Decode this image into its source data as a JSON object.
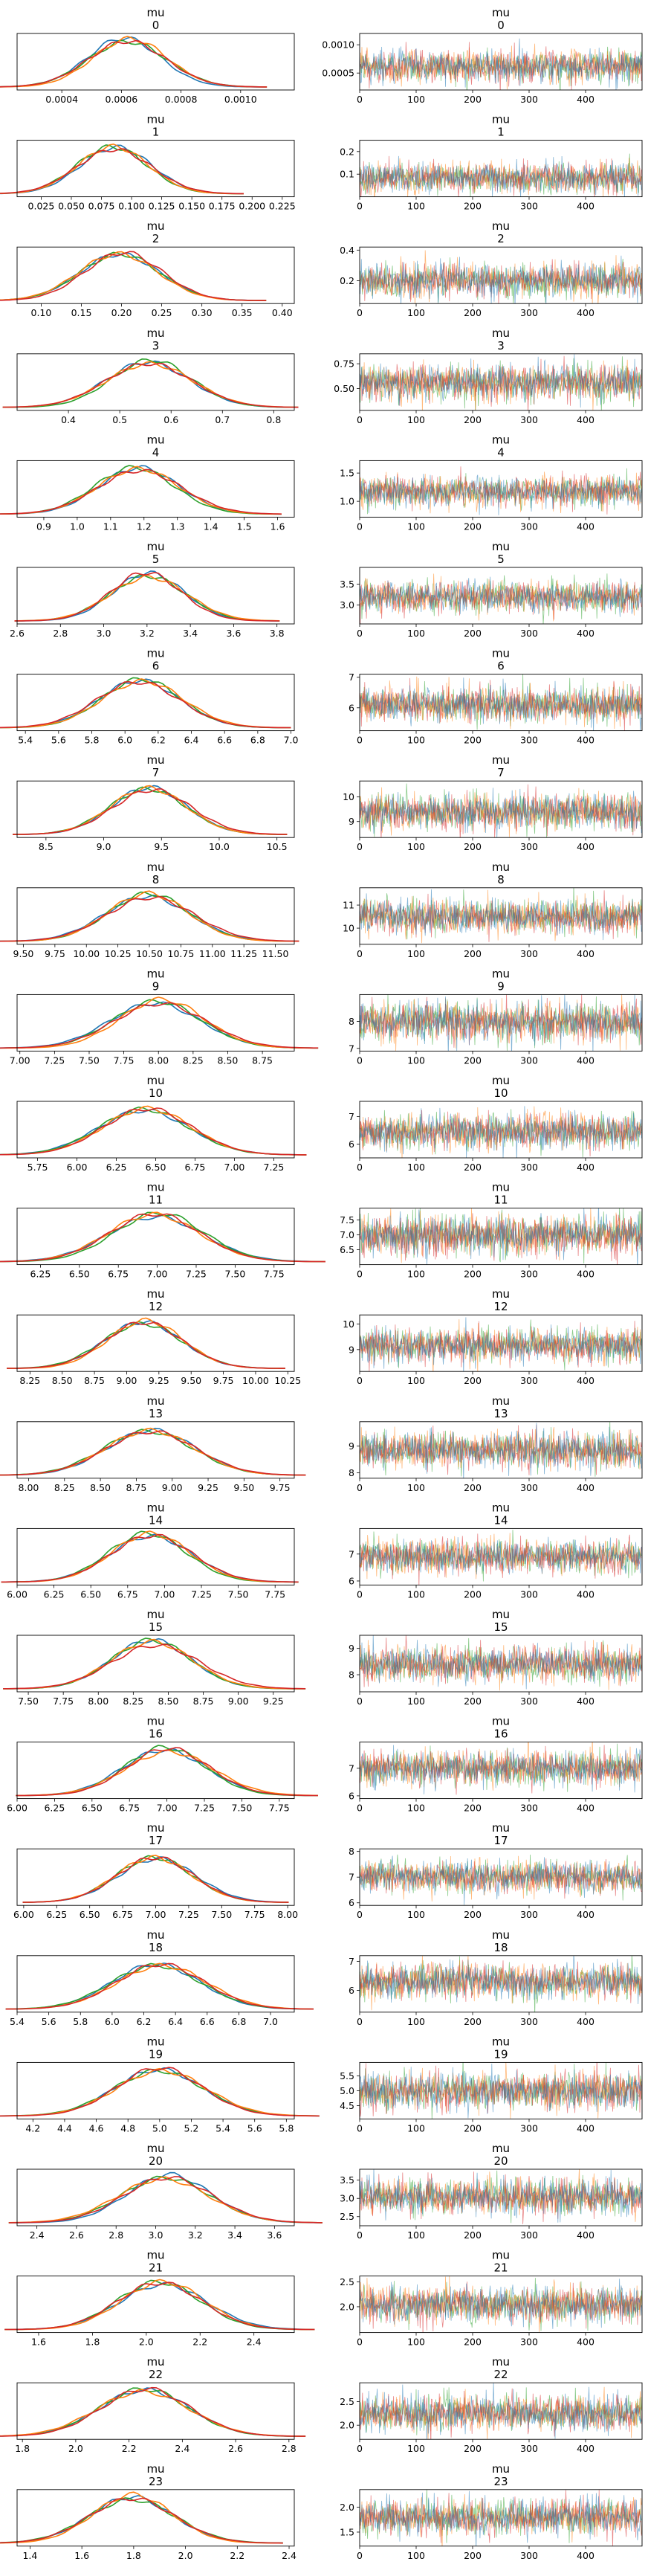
{
  "chart_data": {
    "type": "line",
    "title": "mu",
    "chains_colors": [
      "#1f77b4",
      "#ff7f0e",
      "#2ca02c",
      "#d62728"
    ],
    "trace_xlim": [
      0,
      500
    ],
    "trace_xticks": [
      "0",
      "100",
      "200",
      "300",
      "400"
    ],
    "panels": [
      {
        "index": "0",
        "mean": 0.00062,
        "sd": 0.00013,
        "kde_ticks": [
          "0.0004",
          "0.0006",
          "0.0008",
          "0.0010"
        ],
        "kde_xlim": [
          0.00025,
          0.00118
        ],
        "trace_ticks": [
          "0.0005",
          "0.0010"
        ],
        "trace_ylim": [
          0.0002,
          0.0012
        ]
      },
      {
        "index": "1",
        "mean": 0.085,
        "sd": 0.03,
        "kde_ticks": [
          "0.025",
          "0.050",
          "0.075",
          "0.100",
          "0.125",
          "0.150",
          "0.175",
          "0.200",
          "0.225"
        ],
        "kde_xlim": [
          0.005,
          0.235
        ],
        "trace_ticks": [
          "0.1",
          "0.2"
        ],
        "trace_ylim": [
          0.0,
          0.25
        ]
      },
      {
        "index": "2",
        "mean": 0.2,
        "sd": 0.05,
        "kde_ticks": [
          "0.10",
          "0.15",
          "0.20",
          "0.25",
          "0.30",
          "0.35",
          "0.40"
        ],
        "kde_xlim": [
          0.07,
          0.415
        ],
        "trace_ticks": [
          "0.2",
          "0.4"
        ],
        "trace_ylim": [
          0.05,
          0.42
        ]
      },
      {
        "index": "3",
        "mean": 0.56,
        "sd": 0.08,
        "kde_ticks": [
          "0.4",
          "0.5",
          "0.6",
          "0.7",
          "0.8"
        ],
        "kde_xlim": [
          0.3,
          0.84
        ],
        "trace_ticks": [
          "0.50",
          "0.75"
        ],
        "trace_ylim": [
          0.28,
          0.85
        ]
      },
      {
        "index": "4",
        "mean": 1.18,
        "sd": 0.12,
        "kde_ticks": [
          "0.9",
          "1.0",
          "1.1",
          "1.2",
          "1.3",
          "1.4",
          "1.5",
          "1.6"
        ],
        "kde_xlim": [
          0.82,
          1.65
        ],
        "trace_ticks": [
          "1.0",
          "1.5"
        ],
        "trace_ylim": [
          0.72,
          1.72
        ]
      },
      {
        "index": "5",
        "mean": 3.2,
        "sd": 0.17,
        "kde_ticks": [
          "2.6",
          "2.8",
          "3.0",
          "3.2",
          "3.4",
          "3.6",
          "3.8"
        ],
        "kde_xlim": [
          2.6,
          3.88
        ],
        "trace_ticks": [
          "3.0",
          "3.5"
        ],
        "trace_ylim": [
          2.55,
          3.9
        ]
      },
      {
        "index": "6",
        "mean": 6.1,
        "sd": 0.25,
        "kde_ticks": [
          "5.4",
          "5.6",
          "5.8",
          "6.0",
          "6.2",
          "6.4",
          "6.6",
          "6.8",
          "7.0"
        ],
        "kde_xlim": [
          5.35,
          7.02
        ],
        "trace_ticks": [
          "6",
          "7"
        ],
        "trace_ylim": [
          5.25,
          7.1
        ]
      },
      {
        "index": "7",
        "mean": 9.4,
        "sd": 0.33,
        "kde_ticks": [
          "8.5",
          "9.0",
          "9.5",
          "10.0",
          "10.5"
        ],
        "kde_xlim": [
          8.25,
          10.65
        ],
        "trace_ticks": [
          "9",
          "10"
        ],
        "trace_ylim": [
          8.35,
          10.65
        ]
      },
      {
        "index": "8",
        "mean": 10.5,
        "sd": 0.33,
        "kde_ticks": [
          "9.50",
          "9.75",
          "10.00",
          "10.25",
          "10.50",
          "10.75",
          "11.00",
          "11.25",
          "11.50"
        ],
        "kde_xlim": [
          9.45,
          11.65
        ],
        "trace_ticks": [
          "10",
          "11"
        ],
        "trace_ylim": [
          9.3,
          11.75
        ]
      },
      {
        "index": "9",
        "mean": 8.0,
        "sd": 0.32,
        "kde_ticks": [
          "7.00",
          "7.25",
          "7.50",
          "7.75",
          "8.00",
          "8.25",
          "8.50",
          "8.75"
        ],
        "kde_xlim": [
          6.98,
          8.98
        ],
        "trace_ticks": [
          "7",
          "8"
        ],
        "trace_ylim": [
          6.9,
          9.0
        ]
      },
      {
        "index": "10",
        "mean": 6.45,
        "sd": 0.28,
        "kde_ticks": [
          "5.75",
          "6.00",
          "6.25",
          "6.50",
          "6.75",
          "7.00",
          "7.25"
        ],
        "kde_xlim": [
          5.62,
          7.38
        ],
        "trace_ticks": [
          "6",
          "7"
        ],
        "trace_ylim": [
          5.5,
          7.55
        ]
      },
      {
        "index": "11",
        "mean": 7.0,
        "sd": 0.3,
        "kde_ticks": [
          "6.25",
          "6.50",
          "6.75",
          "7.00",
          "7.25",
          "7.50",
          "7.75"
        ],
        "kde_xlim": [
          6.1,
          7.88
        ],
        "trace_ticks": [
          "6.5",
          "7.0",
          "7.5"
        ],
        "trace_ylim": [
          6.0,
          7.9
        ]
      },
      {
        "index": "12",
        "mean": 9.15,
        "sd": 0.3,
        "kde_ticks": [
          "8.25",
          "8.50",
          "8.75",
          "9.00",
          "9.25",
          "9.50",
          "9.75",
          "10.00",
          "10.25"
        ],
        "kde_xlim": [
          8.15,
          10.3
        ],
        "trace_ticks": [
          "9",
          "10"
        ],
        "trace_ylim": [
          8.15,
          10.35
        ]
      },
      {
        "index": "13",
        "mean": 8.85,
        "sd": 0.3,
        "kde_ticks": [
          "8.00",
          "8.25",
          "8.50",
          "8.75",
          "9.00",
          "9.25",
          "9.50",
          "9.75"
        ],
        "kde_xlim": [
          7.92,
          9.85
        ],
        "trace_ticks": [
          "8",
          "9"
        ],
        "trace_ylim": [
          7.8,
          9.9
        ]
      },
      {
        "index": "14",
        "mean": 6.9,
        "sd": 0.28,
        "kde_ticks": [
          "6.00",
          "6.25",
          "6.50",
          "6.75",
          "7.00",
          "7.25",
          "7.50",
          "7.75"
        ],
        "kde_xlim": [
          6.0,
          7.88
        ],
        "trace_ticks": [
          "6",
          "7"
        ],
        "trace_ylim": [
          5.85,
          7.95
        ]
      },
      {
        "index": "15",
        "mean": 8.4,
        "sd": 0.3,
        "kde_ticks": [
          "7.50",
          "7.75",
          "8.00",
          "8.25",
          "8.50",
          "8.75",
          "9.00",
          "9.25"
        ],
        "kde_xlim": [
          7.42,
          9.4
        ],
        "trace_ticks": [
          "8",
          "9"
        ],
        "trace_ylim": [
          7.35,
          9.5
        ]
      },
      {
        "index": "16",
        "mean": 7.0,
        "sd": 0.28,
        "kde_ticks": [
          "6.00",
          "6.25",
          "6.50",
          "6.75",
          "7.00",
          "7.25",
          "7.50",
          "7.75"
        ],
        "kde_xlim": [
          6.0,
          7.85
        ],
        "trace_ticks": [
          "6",
          "7"
        ],
        "trace_ylim": [
          5.9,
          7.95
        ]
      },
      {
        "index": "17",
        "mean": 7.0,
        "sd": 0.28,
        "kde_ticks": [
          "6.00",
          "6.25",
          "6.50",
          "6.75",
          "7.00",
          "7.25",
          "7.50",
          "7.75",
          "8.00"
        ],
        "kde_xlim": [
          5.95,
          8.05
        ],
        "trace_ticks": [
          "6",
          "7",
          "8"
        ],
        "trace_ylim": [
          5.9,
          8.1
        ]
      },
      {
        "index": "18",
        "mean": 6.3,
        "sd": 0.27,
        "kde_ticks": [
          "5.4",
          "5.6",
          "5.8",
          "6.0",
          "6.2",
          "6.4",
          "6.6",
          "6.8",
          "7.0"
        ],
        "kde_xlim": [
          5.4,
          7.15
        ],
        "trace_ticks": [
          "6",
          "7"
        ],
        "trace_ylim": [
          5.25,
          7.2
        ]
      },
      {
        "index": "19",
        "mean": 5.0,
        "sd": 0.28,
        "kde_ticks": [
          "4.2",
          "4.4",
          "4.6",
          "4.8",
          "5.0",
          "5.2",
          "5.4",
          "5.6",
          "5.8"
        ],
        "kde_xlim": [
          4.1,
          5.85
        ],
        "trace_ticks": [
          "4.5",
          "5.0",
          "5.5"
        ],
        "trace_ylim": [
          4.05,
          5.95
        ]
      },
      {
        "index": "20",
        "mean": 3.05,
        "sd": 0.22,
        "kde_ticks": [
          "2.4",
          "2.6",
          "2.8",
          "3.0",
          "3.2",
          "3.4",
          "3.6"
        ],
        "kde_xlim": [
          2.3,
          3.7
        ],
        "trace_ticks": [
          "2.5",
          "3.0",
          "3.5"
        ],
        "trace_ylim": [
          2.25,
          3.8
        ]
      },
      {
        "index": "21",
        "mean": 2.05,
        "sd": 0.16,
        "kde_ticks": [
          "1.6",
          "1.8",
          "2.0",
          "2.2",
          "2.4"
        ],
        "kde_xlim": [
          1.52,
          2.55
        ],
        "trace_ticks": [
          "2.0",
          "2.5"
        ],
        "trace_ylim": [
          1.48,
          2.62
        ]
      },
      {
        "index": "22",
        "mean": 2.25,
        "sd": 0.17,
        "kde_ticks": [
          "1.8",
          "2.0",
          "2.2",
          "2.4",
          "2.6",
          "2.8"
        ],
        "kde_xlim": [
          1.78,
          2.82
        ],
        "trace_ticks": [
          "2.0",
          "2.5"
        ],
        "trace_ylim": [
          1.7,
          2.9
        ]
      },
      {
        "index": "23",
        "mean": 1.8,
        "sd": 0.16,
        "kde_ticks": [
          "1.4",
          "1.6",
          "1.8",
          "2.0",
          "2.2",
          "2.4"
        ],
        "kde_xlim": [
          1.35,
          2.42
        ],
        "trace_ticks": [
          "1.5",
          "2.0"
        ],
        "trace_ylim": [
          1.22,
          2.35
        ]
      }
    ]
  }
}
